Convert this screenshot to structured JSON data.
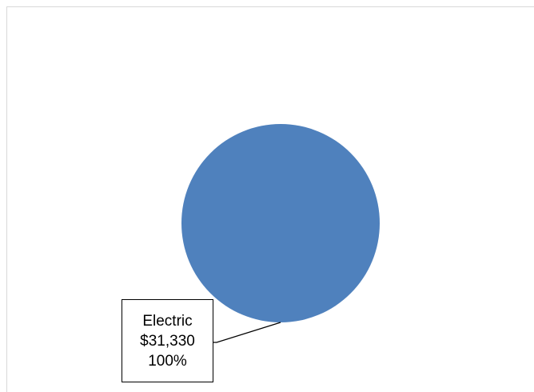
{
  "chart_data": {
    "type": "pie",
    "categories": [
      "Electric"
    ],
    "values": [
      31330
    ],
    "value_labels": [
      "$31,330"
    ],
    "percent_labels": [
      "100%"
    ],
    "title": "",
    "legend": "none",
    "colors": [
      "#4f81bd"
    ]
  }
}
